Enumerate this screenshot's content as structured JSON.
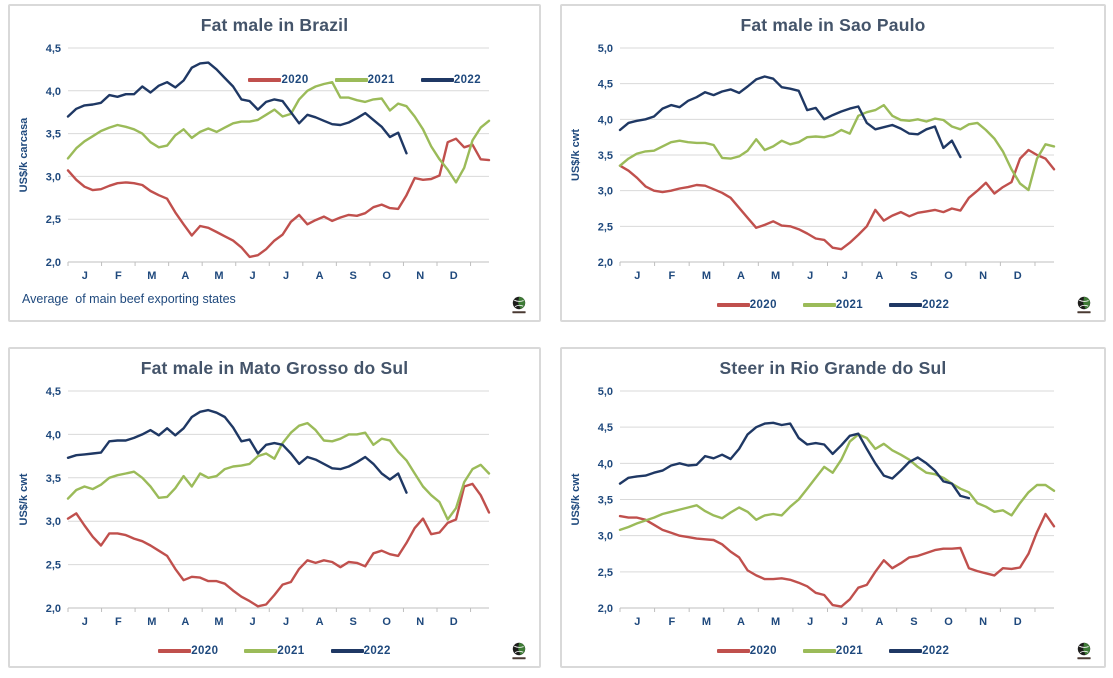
{
  "colors": {
    "s2020": "#C0504D",
    "s2021": "#9BBB59",
    "s2022": "#1F3864",
    "grid": "#D9D9D9",
    "axis_line": "#BFBFBF",
    "tick_text": "#1F497D",
    "title_text": "#44546A",
    "panel_border": "#D9D9D9",
    "logo_ball_green": "#3E7B36",
    "logo_ball_dark": "#1D1D1B",
    "logo_bar": "#4A3A33"
  },
  "x_tick_labels": [
    "J",
    "F",
    "M",
    "A",
    "M",
    "J",
    "J",
    "A",
    "S",
    "O",
    "N",
    "D"
  ],
  "chart_data": [
    {
      "id": "brazil",
      "type": "line",
      "title": "Fat male in Brazil",
      "ylabel": "US$/k carcasa",
      "ylim": [
        2.0,
        4.5
      ],
      "ytick_labels": [
        "2,0",
        "2,5",
        "3,0",
        "3,5",
        "4,0",
        "4,5"
      ],
      "legend_position": "top-right",
      "footnote": "Average  of main beef exporting states",
      "logo_icon": "globe-logo",
      "series": [
        {
          "name": "2020",
          "color": "#C0504D",
          "values": [
            3.07,
            2.96,
            2.88,
            2.84,
            2.85,
            2.89,
            2.92,
            2.93,
            2.92,
            2.9,
            2.83,
            2.78,
            2.74,
            2.58,
            2.44,
            2.31,
            2.42,
            2.4,
            2.35,
            2.3,
            2.25,
            2.17,
            2.06,
            2.08,
            2.15,
            2.25,
            2.32,
            2.47,
            2.55,
            2.44,
            2.49,
            2.53,
            2.48,
            2.52,
            2.55,
            2.54,
            2.57,
            2.64,
            2.67,
            2.63,
            2.62,
            2.78,
            2.98,
            2.96,
            2.97,
            3.01,
            3.4,
            3.44,
            3.34,
            3.37,
            3.2,
            3.19
          ]
        },
        {
          "name": "2021",
          "color": "#9BBB59",
          "values": [
            3.21,
            3.33,
            3.41,
            3.47,
            3.53,
            3.57,
            3.6,
            3.58,
            3.55,
            3.5,
            3.4,
            3.34,
            3.36,
            3.48,
            3.55,
            3.45,
            3.52,
            3.56,
            3.52,
            3.57,
            3.62,
            3.64,
            3.64,
            3.66,
            3.72,
            3.78,
            3.7,
            3.73,
            3.9,
            4.0,
            4.05,
            4.08,
            4.1,
            3.92,
            3.92,
            3.89,
            3.87,
            3.9,
            3.91,
            3.77,
            3.85,
            3.82,
            3.7,
            3.55,
            3.35,
            3.2,
            3.08,
            2.93,
            3.1,
            3.42,
            3.57,
            3.65
          ]
        },
        {
          "name": "2022",
          "color": "#1F3864",
          "values": [
            3.7,
            3.79,
            3.83,
            3.84,
            3.86,
            3.95,
            3.93,
            3.96,
            3.96,
            4.05,
            3.98,
            4.06,
            4.1,
            4.04,
            4.12,
            4.27,
            4.32,
            4.33,
            4.25,
            4.15,
            4.05,
            3.9,
            3.88,
            3.78,
            3.87,
            3.9,
            3.88,
            3.75,
            3.62,
            3.72,
            3.69,
            3.65,
            3.61,
            3.6,
            3.63,
            3.68,
            3.74,
            3.66,
            3.58,
            3.46,
            3.51,
            3.27
          ]
        }
      ]
    },
    {
      "id": "sao-paulo",
      "type": "line",
      "title": "Fat male in Sao Paulo",
      "ylabel": "US$/k cwt",
      "ylim": [
        2.0,
        5.0
      ],
      "ytick_labels": [
        "2,0",
        "2,5",
        "3,0",
        "3,5",
        "4,0",
        "4,5",
        "5,0"
      ],
      "legend_position": "bottom",
      "footnote": "",
      "logo_icon": "globe-logo",
      "series": [
        {
          "name": "2020",
          "color": "#C0504D",
          "values": [
            3.35,
            3.28,
            3.18,
            3.06,
            3.0,
            2.98,
            3.0,
            3.03,
            3.05,
            3.08,
            3.07,
            3.02,
            2.97,
            2.9,
            2.76,
            2.62,
            2.48,
            2.52,
            2.57,
            2.51,
            2.5,
            2.46,
            2.4,
            2.33,
            2.31,
            2.2,
            2.18,
            2.27,
            2.38,
            2.5,
            2.73,
            2.58,
            2.65,
            2.7,
            2.64,
            2.69,
            2.71,
            2.73,
            2.7,
            2.75,
            2.72,
            2.9,
            3.0,
            3.11,
            2.96,
            3.05,
            3.12,
            3.45,
            3.57,
            3.5,
            3.45,
            3.3
          ]
        },
        {
          "name": "2021",
          "color": "#9BBB59",
          "values": [
            3.35,
            3.45,
            3.52,
            3.55,
            3.56,
            3.62,
            3.68,
            3.7,
            3.68,
            3.67,
            3.67,
            3.64,
            3.46,
            3.45,
            3.48,
            3.56,
            3.72,
            3.57,
            3.62,
            3.7,
            3.65,
            3.68,
            3.75,
            3.76,
            3.75,
            3.78,
            3.85,
            3.8,
            4.05,
            4.1,
            4.13,
            4.2,
            4.05,
            3.99,
            3.98,
            4.0,
            3.97,
            4.01,
            3.99,
            3.9,
            3.86,
            3.93,
            3.95,
            3.85,
            3.73,
            3.55,
            3.3,
            3.1,
            3.01,
            3.45,
            3.65,
            3.62
          ]
        },
        {
          "name": "2022",
          "color": "#1F3864",
          "values": [
            3.85,
            3.95,
            3.98,
            4.0,
            4.04,
            4.15,
            4.2,
            4.17,
            4.26,
            4.31,
            4.38,
            4.34,
            4.39,
            4.42,
            4.37,
            4.46,
            4.56,
            4.6,
            4.57,
            4.45,
            4.43,
            4.4,
            4.13,
            4.16,
            4.0,
            4.06,
            4.11,
            4.15,
            4.18,
            3.95,
            3.86,
            3.89,
            3.92,
            3.87,
            3.8,
            3.79,
            3.86,
            3.9,
            3.6,
            3.7,
            3.47
          ]
        }
      ]
    },
    {
      "id": "mato-grosso-do-sul",
      "type": "line",
      "title": "Fat male in Mato Grosso do Sul",
      "ylabel": "US$/k  cwt",
      "ylim": [
        2.0,
        4.5
      ],
      "ytick_labels": [
        "2,0",
        "2,5",
        "3,0",
        "3,5",
        "4,0",
        "4,5"
      ],
      "legend_position": "bottom",
      "footnote": "",
      "logo_icon": "globe-logo",
      "series": [
        {
          "name": "2020",
          "color": "#C0504D",
          "values": [
            3.03,
            3.09,
            2.95,
            2.82,
            2.72,
            2.86,
            2.86,
            2.84,
            2.8,
            2.77,
            2.72,
            2.66,
            2.6,
            2.45,
            2.32,
            2.36,
            2.35,
            2.31,
            2.31,
            2.28,
            2.2,
            2.13,
            2.08,
            2.02,
            2.04,
            2.15,
            2.27,
            2.3,
            2.45,
            2.55,
            2.52,
            2.55,
            2.53,
            2.47,
            2.53,
            2.52,
            2.48,
            2.63,
            2.66,
            2.62,
            2.6,
            2.75,
            2.92,
            3.03,
            2.85,
            2.87,
            2.98,
            3.02,
            3.4,
            3.43,
            3.3,
            3.1
          ]
        },
        {
          "name": "2021",
          "color": "#9BBB59",
          "values": [
            3.26,
            3.36,
            3.4,
            3.37,
            3.42,
            3.5,
            3.53,
            3.55,
            3.57,
            3.5,
            3.4,
            3.27,
            3.28,
            3.38,
            3.52,
            3.4,
            3.55,
            3.5,
            3.52,
            3.6,
            3.63,
            3.64,
            3.66,
            3.75,
            3.78,
            3.72,
            3.9,
            4.02,
            4.1,
            4.13,
            4.05,
            3.93,
            3.92,
            3.95,
            4.0,
            4.0,
            4.02,
            3.88,
            3.95,
            3.93,
            3.8,
            3.7,
            3.55,
            3.4,
            3.3,
            3.22,
            3.02,
            3.15,
            3.45,
            3.6,
            3.65,
            3.55
          ]
        },
        {
          "name": "2022",
          "color": "#1F3864",
          "values": [
            3.73,
            3.76,
            3.77,
            3.78,
            3.79,
            3.92,
            3.93,
            3.93,
            3.96,
            4.0,
            4.05,
            3.99,
            4.07,
            3.99,
            4.07,
            4.2,
            4.26,
            4.28,
            4.25,
            4.2,
            4.08,
            3.92,
            3.94,
            3.78,
            3.88,
            3.9,
            3.88,
            3.78,
            3.66,
            3.74,
            3.71,
            3.66,
            3.61,
            3.6,
            3.63,
            3.68,
            3.74,
            3.66,
            3.55,
            3.48,
            3.55,
            3.33
          ]
        }
      ]
    },
    {
      "id": "rio-grande-do-sul",
      "type": "line",
      "title": "Steer  in Rio Grande do Sul",
      "ylabel": "US$/k  cwt",
      "ylim": [
        2.0,
        5.0
      ],
      "ytick_labels": [
        "2,0",
        "2,5",
        "3,0",
        "3,5",
        "4,0",
        "4,5",
        "5,0"
      ],
      "legend_position": "bottom",
      "footnote": "",
      "logo_icon": "globe-logo",
      "series": [
        {
          "name": "2020",
          "color": "#C0504D",
          "values": [
            3.27,
            3.25,
            3.25,
            3.22,
            3.15,
            3.08,
            3.04,
            3.0,
            2.98,
            2.96,
            2.95,
            2.94,
            2.88,
            2.78,
            2.7,
            2.52,
            2.45,
            2.4,
            2.4,
            2.41,
            2.39,
            2.35,
            2.3,
            2.21,
            2.18,
            2.04,
            2.02,
            2.12,
            2.28,
            2.32,
            2.5,
            2.66,
            2.55,
            2.62,
            2.7,
            2.72,
            2.76,
            2.8,
            2.82,
            2.82,
            2.83,
            2.55,
            2.51,
            2.48,
            2.45,
            2.55,
            2.54,
            2.56,
            2.75,
            3.05,
            3.3,
            3.13
          ]
        },
        {
          "name": "2021",
          "color": "#9BBB59",
          "values": [
            3.08,
            3.12,
            3.17,
            3.21,
            3.25,
            3.3,
            3.33,
            3.36,
            3.39,
            3.42,
            3.34,
            3.28,
            3.24,
            3.32,
            3.39,
            3.33,
            3.22,
            3.28,
            3.3,
            3.28,
            3.4,
            3.5,
            3.65,
            3.8,
            3.95,
            3.87,
            4.05,
            4.3,
            4.4,
            4.35,
            4.2,
            4.27,
            4.18,
            4.12,
            4.05,
            3.95,
            3.87,
            3.85,
            3.8,
            3.72,
            3.65,
            3.6,
            3.45,
            3.4,
            3.33,
            3.35,
            3.28,
            3.45,
            3.6,
            3.7,
            3.7,
            3.62
          ]
        },
        {
          "name": "2022",
          "color": "#1F3864",
          "values": [
            3.72,
            3.8,
            3.82,
            3.83,
            3.87,
            3.9,
            3.97,
            4.0,
            3.97,
            3.98,
            4.1,
            4.07,
            4.12,
            4.06,
            4.2,
            4.4,
            4.5,
            4.55,
            4.56,
            4.53,
            4.55,
            4.35,
            4.26,
            4.28,
            4.26,
            4.13,
            4.25,
            4.38,
            4.41,
            4.2,
            4.0,
            3.83,
            3.79,
            3.9,
            4.02,
            4.08,
            4.0,
            3.9,
            3.75,
            3.72,
            3.55,
            3.52
          ]
        }
      ]
    }
  ]
}
